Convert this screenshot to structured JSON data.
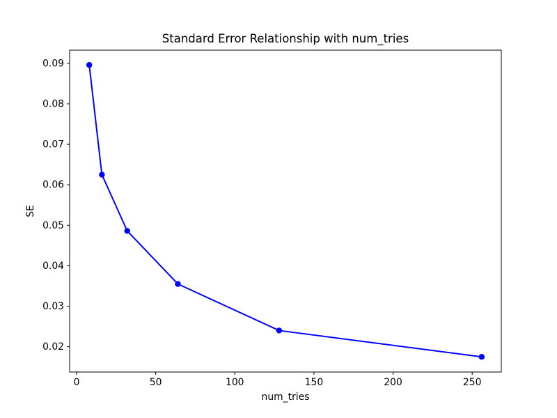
{
  "chart_data": {
    "type": "line",
    "title": "Standard Error Relationship with num_tries",
    "xlabel": "num_tries",
    "ylabel": "SE",
    "x": [
      8,
      16,
      32,
      64,
      128,
      256
    ],
    "y": [
      0.0896,
      0.0625,
      0.0486,
      0.0355,
      0.024,
      0.0175
    ],
    "series": [
      {
        "name": "SE",
        "x": [
          8,
          16,
          32,
          64,
          128,
          256
        ],
        "values": [
          0.0896,
          0.0625,
          0.0486,
          0.0355,
          0.024,
          0.0175
        ]
      }
    ],
    "xticks": [
      0,
      50,
      100,
      150,
      200,
      250
    ],
    "xtick_labels": [
      "0",
      "50",
      "100",
      "150",
      "200",
      "250"
    ],
    "yticks": [
      0.02,
      0.03,
      0.04,
      0.05,
      0.06,
      0.07,
      0.08,
      0.09
    ],
    "ytick_labels": [
      "0.02",
      "0.03",
      "0.04",
      "0.05",
      "0.06",
      "0.07",
      "0.08",
      "0.09"
    ],
    "xlim": [
      -4.4,
      268.4
    ],
    "ylim": [
      0.01375,
      0.09325
    ],
    "grid": false,
    "legend_position": "none",
    "line_color": "#0000ff",
    "marker": "o",
    "background_color": "#ffffff"
  }
}
